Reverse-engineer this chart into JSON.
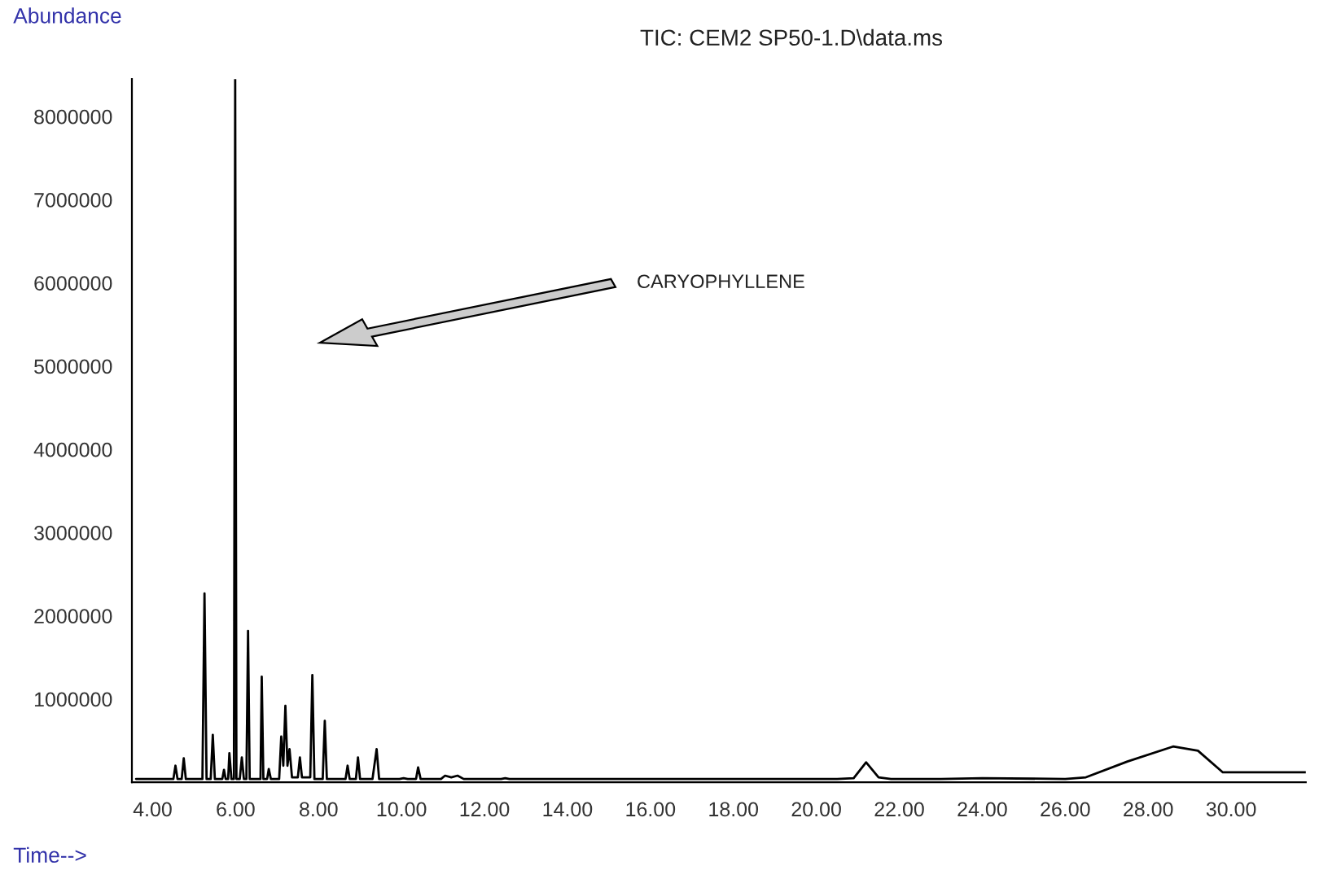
{
  "chart_data": {
    "type": "line",
    "title": "TIC: CEM2 SP50-1.D\\data.ms",
    "xlabel": "Time-->",
    "ylabel": "Abundance",
    "annotations": [
      "CARYOPHYLLENE"
    ],
    "xlim": [
      3.5,
      31.8
    ],
    "ylim": [
      0,
      8450000
    ],
    "xticks": [
      {
        "value": 4,
        "label": "4.00"
      },
      {
        "value": 6,
        "label": "6.00"
      },
      {
        "value": 8,
        "label": "8.00"
      },
      {
        "value": 10,
        "label": "10.00"
      },
      {
        "value": 12,
        "label": "12.00"
      },
      {
        "value": 14,
        "label": "14.00"
      },
      {
        "value": 16,
        "label": "16.00"
      },
      {
        "value": 18,
        "label": "18.00"
      },
      {
        "value": 20,
        "label": "20.00"
      },
      {
        "value": 22,
        "label": "22.00"
      },
      {
        "value": 24,
        "label": "24.00"
      },
      {
        "value": 26,
        "label": "26.00"
      },
      {
        "value": 28,
        "label": "28.00"
      },
      {
        "value": 30,
        "label": "30.00"
      }
    ],
    "yticks": [
      1000000,
      2000000,
      3000000,
      4000000,
      5000000,
      6000000,
      7000000,
      8000000
    ],
    "grid": false,
    "marker": "none",
    "line_style": "solid",
    "series": [
      {
        "color": "#000000",
        "x": [
          3.6,
          4.5,
          4.55,
          4.6,
          4.7,
          4.75,
          4.8,
          5.2,
          5.25,
          5.3,
          5.4,
          5.45,
          5.5,
          5.68,
          5.72,
          5.76,
          5.82,
          5.85,
          5.9,
          5.96,
          5.99,
          6.02,
          6.1,
          6.15,
          6.2,
          6.26,
          6.3,
          6.34,
          6.6,
          6.63,
          6.67,
          6.76,
          6.8,
          6.85,
          7.05,
          7.1,
          7.15,
          7.2,
          7.25,
          7.3,
          7.36,
          7.5,
          7.55,
          7.6,
          7.8,
          7.85,
          7.9,
          8.1,
          8.15,
          8.2,
          8.65,
          8.7,
          8.75,
          8.9,
          8.95,
          9.0,
          9.3,
          9.4,
          9.46,
          9.95,
          10.05,
          10.15,
          10.35,
          10.4,
          10.46,
          10.95,
          11.05,
          11.2,
          11.35,
          11.5,
          12.4,
          12.5,
          12.6,
          20.5,
          20.9,
          21.2,
          21.5,
          21.8,
          23.0,
          24.0,
          26.0,
          26.5,
          27.5,
          28.6,
          29.2,
          29.8,
          30.5,
          31.8
        ],
        "values": [
          40000,
          40000,
          200000,
          40000,
          40000,
          290000,
          40000,
          40000,
          2270000,
          40000,
          40000,
          570000,
          40000,
          40000,
          150000,
          40000,
          40000,
          350000,
          40000,
          40000,
          8450000,
          40000,
          40000,
          300000,
          40000,
          40000,
          1820000,
          40000,
          40000,
          1270000,
          40000,
          40000,
          160000,
          40000,
          40000,
          550000,
          200000,
          920000,
          200000,
          400000,
          60000,
          60000,
          300000,
          60000,
          60000,
          1290000,
          40000,
          40000,
          740000,
          40000,
          40000,
          200000,
          40000,
          40000,
          300000,
          40000,
          40000,
          400000,
          40000,
          40000,
          50000,
          40000,
          40000,
          180000,
          40000,
          40000,
          80000,
          60000,
          80000,
          40000,
          40000,
          50000,
          40000,
          40000,
          50000,
          240000,
          60000,
          40000,
          40000,
          50000,
          40000,
          60000,
          250000,
          430000,
          380000,
          120000,
          120000,
          120000
        ]
      }
    ]
  }
}
